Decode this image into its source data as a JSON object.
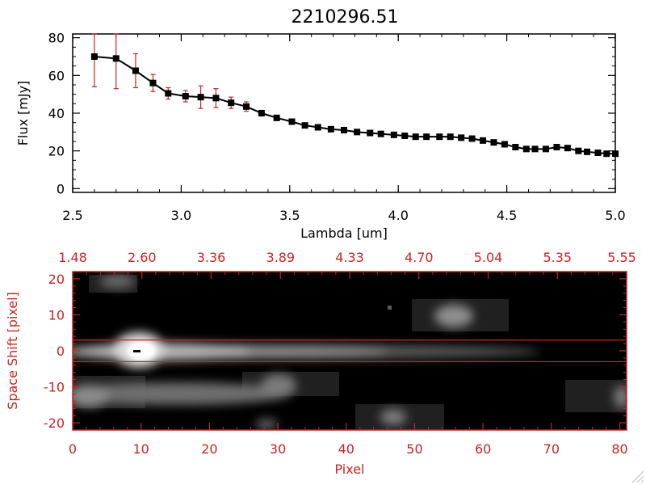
{
  "colors": {
    "axis_black": "#000000",
    "accent_red": "#cc2222",
    "background": "#ffffff"
  },
  "chart_data": [
    {
      "type": "line",
      "title": "2210296.51",
      "xlabel": "Lambda [um]",
      "ylabel": "Flux [mJy]",
      "xlim": [
        2.5,
        5.0
      ],
      "ylim": [
        -2,
        82
      ],
      "x_ticks": [
        "2.5",
        "3.0",
        "3.5",
        "4.0",
        "4.5",
        "5.0"
      ],
      "y_ticks": [
        "0",
        "20",
        "40",
        "60",
        "80"
      ],
      "grid": false,
      "x": [
        2.6,
        2.7,
        2.79,
        2.87,
        2.94,
        3.02,
        3.09,
        3.16,
        3.23,
        3.3,
        3.37,
        3.44,
        3.51,
        3.57,
        3.63,
        3.69,
        3.75,
        3.81,
        3.87,
        3.92,
        3.98,
        4.03,
        4.08,
        4.13,
        4.19,
        4.24,
        4.29,
        4.34,
        4.39,
        4.44,
        4.49,
        4.54,
        4.59,
        4.63,
        4.68,
        4.73,
        4.78,
        4.83,
        4.87,
        4.92,
        4.96,
        5.0
      ],
      "y": [
        70,
        69,
        62.5,
        56,
        50.5,
        49,
        48.5,
        48,
        45.5,
        43.5,
        40,
        37.5,
        35.5,
        33.5,
        32.5,
        31.5,
        31,
        30,
        29.5,
        29,
        28.5,
        28,
        27.5,
        27.5,
        27.5,
        27.5,
        27,
        26.5,
        25.5,
        24.5,
        23.5,
        22,
        21,
        21,
        21,
        22,
        21.5,
        20,
        19.5,
        19,
        18.5,
        18.5
      ],
      "error": [
        16,
        16,
        9,
        4.5,
        3,
        3,
        6,
        5,
        3,
        2.5,
        1.5,
        1,
        1,
        1,
        1,
        1,
        1,
        1,
        1,
        1,
        1,
        1,
        1,
        1,
        1,
        1,
        1,
        1,
        1,
        1,
        1,
        1,
        1,
        1,
        1,
        1,
        1,
        1,
        1,
        1,
        1,
        1
      ],
      "marker": "square",
      "line_color": "#000000",
      "marker_color": "#000000",
      "error_color": "#cc2222"
    },
    {
      "type": "heatmap",
      "xlabel": "Pixel",
      "ylabel": "Space Shift [pixel]",
      "xlim": [
        0,
        81
      ],
      "ylim": [
        -22,
        22
      ],
      "x_ticks": [
        "0",
        "10",
        "20",
        "30",
        "40",
        "50",
        "60",
        "70",
        "80"
      ],
      "y_ticks": [
        "-20",
        "-10",
        "0",
        "10",
        "20"
      ],
      "top_axis_ticks": [
        "1.48",
        "2.60",
        "3.36",
        "3.89",
        "4.33",
        "4.70",
        "5.04",
        "5.35",
        "5.55"
      ],
      "extraction_window": [
        -3,
        3
      ],
      "colormap": "grayscale",
      "axis_color": "#cc2222"
    }
  ]
}
